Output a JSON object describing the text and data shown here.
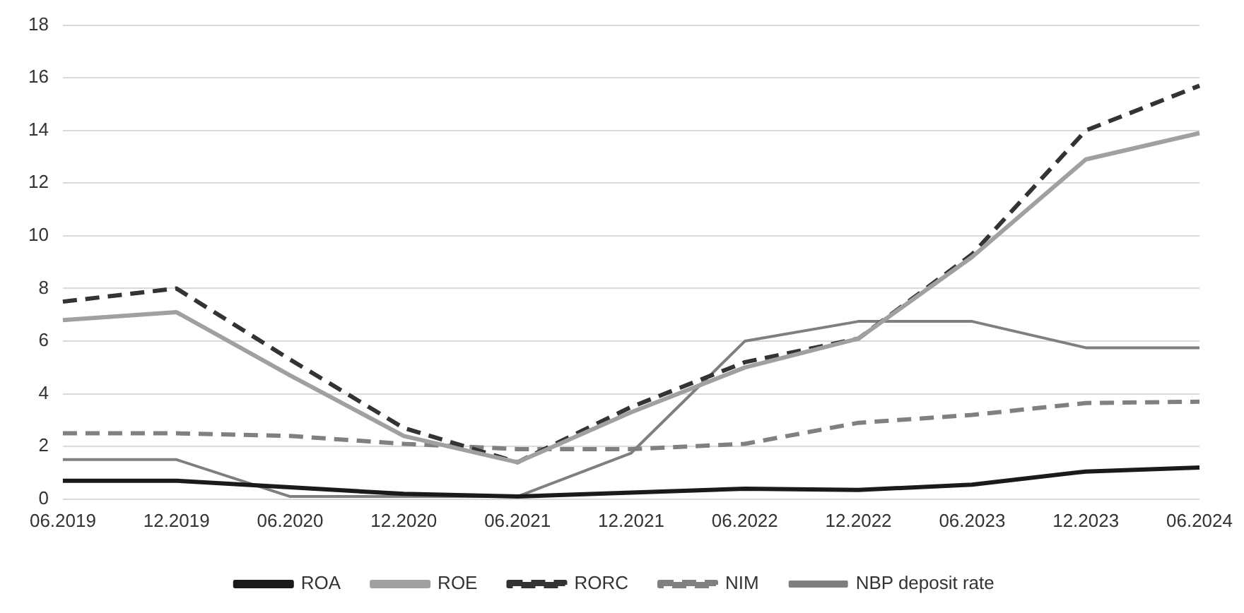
{
  "chart_data": {
    "type": "line",
    "categories": [
      "06.2019",
      "12.2019",
      "06.2020",
      "12.2020",
      "06.2021",
      "12.2021",
      "06.2022",
      "12.2022",
      "06.2023",
      "12.2023",
      "06.2024"
    ],
    "series": [
      {
        "name": "ROA",
        "color": "#1a1a1a",
        "line_style": "solid",
        "values": [
          0.7,
          0.7,
          0.45,
          0.2,
          0.1,
          0.25,
          0.4,
          0.35,
          0.55,
          1.05,
          1.2
        ]
      },
      {
        "name": "ROE",
        "color": "#a0a0a0",
        "line_style": "solid",
        "values": [
          6.8,
          7.1,
          4.7,
          2.4,
          1.4,
          3.3,
          5.0,
          6.1,
          9.2,
          12.9,
          13.9
        ]
      },
      {
        "name": "RORC",
        "color": "#333333",
        "line_style": "dashed",
        "values": [
          7.5,
          8.0,
          5.3,
          2.7,
          1.4,
          3.5,
          5.2,
          6.1,
          9.3,
          14.0,
          15.7
        ]
      },
      {
        "name": "NIM",
        "color": "#808080",
        "line_style": "dashed",
        "values": [
          2.5,
          2.5,
          2.4,
          2.1,
          1.9,
          1.9,
          2.1,
          2.9,
          3.2,
          3.65,
          3.7
        ]
      },
      {
        "name": "NBP deposit rate",
        "color": "#7f7f7f",
        "line_style": "solid",
        "values": [
          1.5,
          1.5,
          0.1,
          0.1,
          0.1,
          1.75,
          6.0,
          6.75,
          6.75,
          5.75,
          5.75
        ]
      }
    ],
    "ylim": [
      0,
      18
    ],
    "yticks": [
      0,
      2,
      4,
      6,
      8,
      10,
      12,
      14,
      16,
      18
    ],
    "grid": "y",
    "legend": "bottom",
    "marker": "none"
  }
}
